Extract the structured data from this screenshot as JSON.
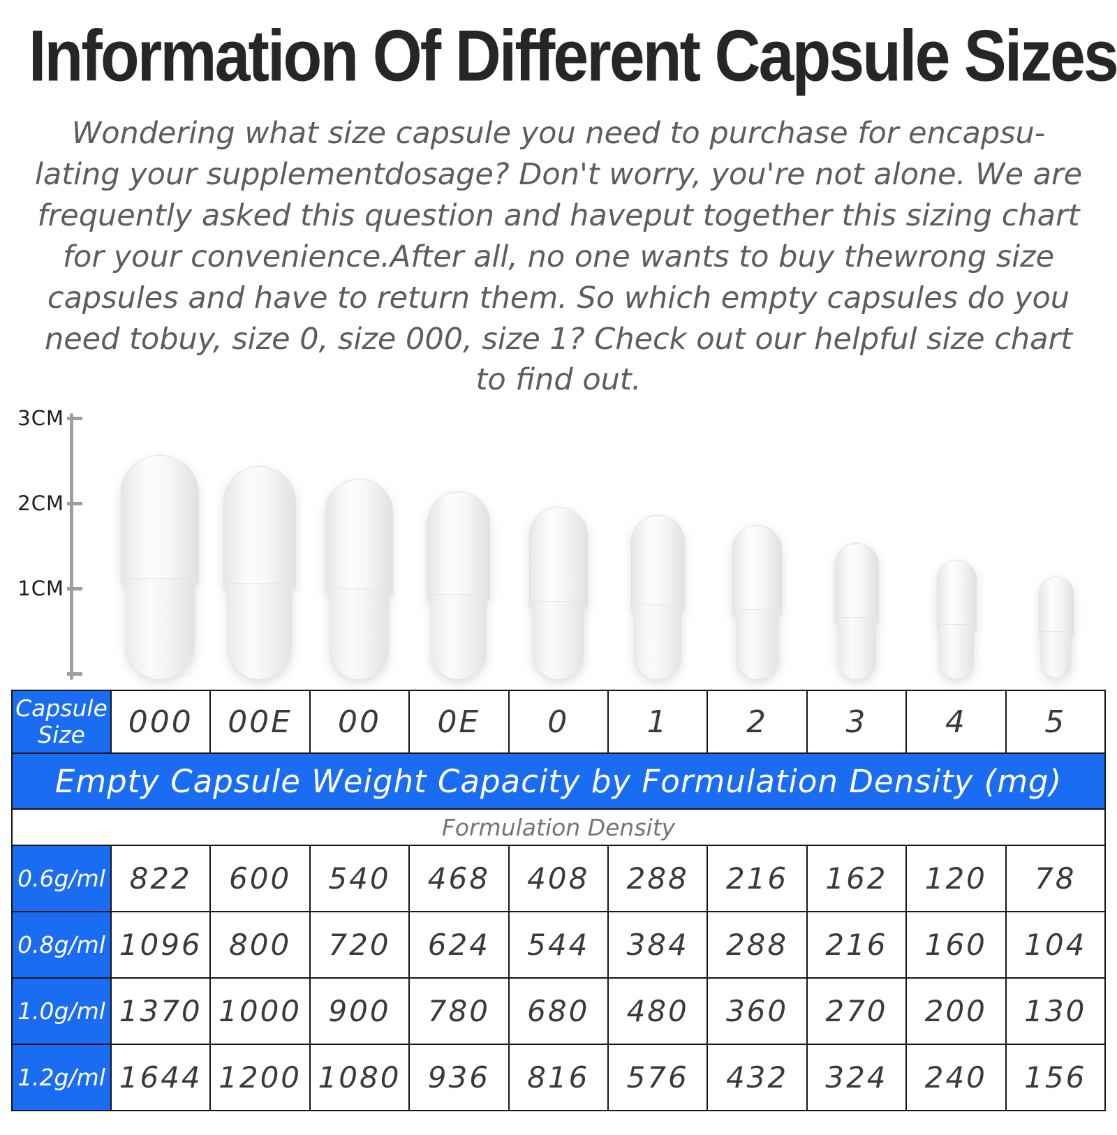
{
  "title": "Information Of Different Capsule Sizes",
  "intro": "Wondering what size capsule you need to purchase for encapsu-lating your supplementdosage? Don't worry, you're not alone. We are frequently asked this question and haveput together this sizing chart for your convenience.After all, no one wants to buy thewrong size capsules and have to return them. So which empty capsules do you need tobuy, size 0, size 000, size 1? Check out our helpful size chart to find out.",
  "ruler": {
    "marks": [
      "3CM",
      "2CM",
      "1CM"
    ]
  },
  "table": {
    "corner": "Capsule Size",
    "sizes": [
      "000",
      "00E",
      "00",
      "0E",
      "0",
      "1",
      "2",
      "3",
      "4",
      "5"
    ],
    "banner": "Empty Capsule Weight Capacity by Formulation Density (mg)",
    "density_header": "Formulation Density",
    "rows": [
      {
        "label": "0.6g/ml",
        "values": [
          "822",
          "600",
          "540",
          "468",
          "408",
          "288",
          "216",
          "162",
          "120",
          "78"
        ]
      },
      {
        "label": "0.8g/ml",
        "values": [
          "1096",
          "800",
          "720",
          "624",
          "544",
          "384",
          "288",
          "216",
          "160",
          "104"
        ]
      },
      {
        "label": "1.0g/ml",
        "values": [
          "1370",
          "1000",
          "900",
          "780",
          "680",
          "480",
          "360",
          "270",
          "200",
          "130"
        ]
      },
      {
        "label": "1.2g/ml",
        "values": [
          "1644",
          "1200",
          "1080",
          "936",
          "816",
          "576",
          "432",
          "324",
          "240",
          "156"
        ]
      }
    ]
  },
  "colors": {
    "accent_blue": "#1a6df3",
    "ruler_gray": "#9e9e9e",
    "text_gray": "#5d5d5d"
  },
  "chart_data": {
    "type": "table",
    "title": "Empty Capsule Weight Capacity by Formulation Density (mg)",
    "subtitle": "Formulation Density",
    "columns": [
      "Capsule Size",
      "000",
      "00E",
      "00",
      "0E",
      "0",
      "1",
      "2",
      "3",
      "4",
      "5"
    ],
    "rows": [
      [
        "0.6g/ml",
        822,
        600,
        540,
        468,
        408,
        288,
        216,
        162,
        120,
        78
      ],
      [
        "0.8g/ml",
        1096,
        800,
        720,
        624,
        544,
        384,
        288,
        216,
        160,
        104
      ],
      [
        "1.0g/ml",
        1370,
        1000,
        900,
        780,
        680,
        480,
        360,
        270,
        200,
        130
      ],
      [
        "1.2g/ml",
        1644,
        1200,
        1080,
        936,
        816,
        576,
        432,
        324,
        240,
        156
      ]
    ],
    "ruler_scale_cm": [
      3,
      2,
      1
    ]
  }
}
